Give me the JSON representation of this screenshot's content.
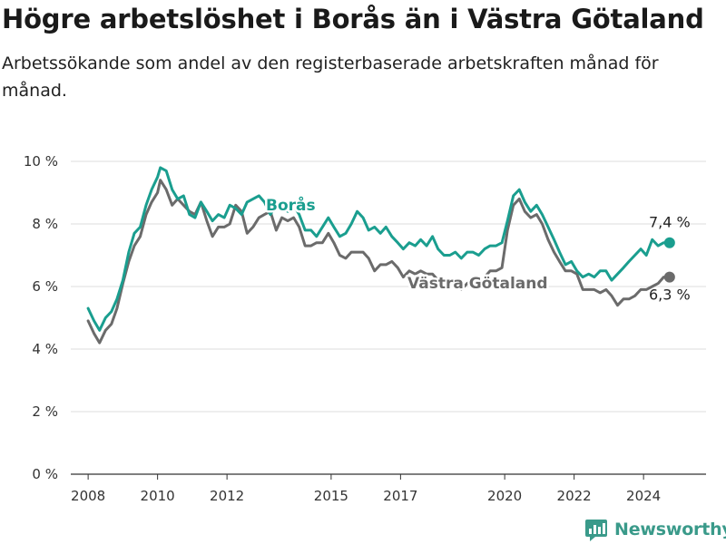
{
  "title": "Högre arbetslöshet i Borås än i Västra Götaland",
  "subtitle": "Arbetssökande som andel av den registerbaserade arbetskraften månad för månad.",
  "brand": {
    "name": "Newsworthy",
    "icon": "newsworthy-logo-icon",
    "color": "#3a9a8a"
  },
  "colors": {
    "boras": "#1a9e8f",
    "vg": "#6b6b6b",
    "grid": "#dcdcdc"
  },
  "chart_data": {
    "type": "line",
    "title": "Högre arbetslöshet i Borås än i Västra Götaland",
    "xlabel": "",
    "ylabel": "",
    "xlim": [
      2007.5,
      2025.8
    ],
    "ylim": [
      0,
      10
    ],
    "grid": true,
    "x_ticks": [
      2008,
      2010,
      2012,
      2015,
      2017,
      2020,
      2022,
      2024
    ],
    "y_ticks": [
      0,
      2,
      4,
      6,
      8,
      10
    ],
    "y_tick_labels": [
      "0 %",
      "2 %",
      "4 %",
      "6 %",
      "8 %",
      "10 %"
    ],
    "series": [
      {
        "name": "Borås",
        "color": "#1a9e8f",
        "end_label": "7,4 %",
        "points": [
          [
            2008.0,
            5.3
          ],
          [
            2008.17,
            4.9
          ],
          [
            2008.33,
            4.6
          ],
          [
            2008.5,
            5.0
          ],
          [
            2008.67,
            5.2
          ],
          [
            2008.83,
            5.6
          ],
          [
            2009.0,
            6.2
          ],
          [
            2009.17,
            7.1
          ],
          [
            2009.33,
            7.7
          ],
          [
            2009.5,
            7.9
          ],
          [
            2009.67,
            8.6
          ],
          [
            2009.83,
            9.1
          ],
          [
            2010.0,
            9.5
          ],
          [
            2010.08,
            9.8
          ],
          [
            2010.25,
            9.7
          ],
          [
            2010.42,
            9.1
          ],
          [
            2010.58,
            8.8
          ],
          [
            2010.75,
            8.9
          ],
          [
            2010.92,
            8.3
          ],
          [
            2011.08,
            8.2
          ],
          [
            2011.25,
            8.7
          ],
          [
            2011.42,
            8.4
          ],
          [
            2011.58,
            8.1
          ],
          [
            2011.75,
            8.3
          ],
          [
            2011.92,
            8.2
          ],
          [
            2012.08,
            8.6
          ],
          [
            2012.25,
            8.5
          ],
          [
            2012.42,
            8.3
          ],
          [
            2012.58,
            8.7
          ],
          [
            2012.75,
            8.8
          ],
          [
            2012.92,
            8.9
          ],
          [
            2013.08,
            8.7
          ],
          [
            2013.25,
            8.3
          ],
          [
            2013.42,
            8.6
          ],
          [
            2013.58,
            8.5
          ],
          [
            2013.75,
            8.4
          ],
          [
            2013.92,
            8.6
          ],
          [
            2014.08,
            8.3
          ],
          [
            2014.25,
            7.8
          ],
          [
            2014.42,
            7.8
          ],
          [
            2014.58,
            7.6
          ],
          [
            2014.75,
            7.9
          ],
          [
            2014.92,
            8.2
          ],
          [
            2015.08,
            7.9
          ],
          [
            2015.25,
            7.6
          ],
          [
            2015.42,
            7.7
          ],
          [
            2015.58,
            8.0
          ],
          [
            2015.75,
            8.4
          ],
          [
            2015.92,
            8.2
          ],
          [
            2016.08,
            7.8
          ],
          [
            2016.25,
            7.9
          ],
          [
            2016.42,
            7.7
          ],
          [
            2016.58,
            7.9
          ],
          [
            2016.75,
            7.6
          ],
          [
            2016.92,
            7.4
          ],
          [
            2017.08,
            7.2
          ],
          [
            2017.25,
            7.4
          ],
          [
            2017.42,
            7.3
          ],
          [
            2017.58,
            7.5
          ],
          [
            2017.75,
            7.3
          ],
          [
            2017.92,
            7.6
          ],
          [
            2018.08,
            7.2
          ],
          [
            2018.25,
            7.0
          ],
          [
            2018.42,
            7.0
          ],
          [
            2018.58,
            7.1
          ],
          [
            2018.75,
            6.9
          ],
          [
            2018.92,
            7.1
          ],
          [
            2019.08,
            7.1
          ],
          [
            2019.25,
            7.0
          ],
          [
            2019.42,
            7.2
          ],
          [
            2019.58,
            7.3
          ],
          [
            2019.75,
            7.3
          ],
          [
            2019.92,
            7.4
          ],
          [
            2020.08,
            8.1
          ],
          [
            2020.25,
            8.9
          ],
          [
            2020.42,
            9.1
          ],
          [
            2020.58,
            8.7
          ],
          [
            2020.75,
            8.4
          ],
          [
            2020.92,
            8.6
          ],
          [
            2021.08,
            8.3
          ],
          [
            2021.25,
            7.9
          ],
          [
            2021.42,
            7.5
          ],
          [
            2021.58,
            7.1
          ],
          [
            2021.75,
            6.7
          ],
          [
            2021.92,
            6.8
          ],
          [
            2022.08,
            6.5
          ],
          [
            2022.25,
            6.3
          ],
          [
            2022.42,
            6.4
          ],
          [
            2022.58,
            6.3
          ],
          [
            2022.75,
            6.5
          ],
          [
            2022.92,
            6.5
          ],
          [
            2023.08,
            6.2
          ],
          [
            2023.25,
            6.4
          ],
          [
            2023.42,
            6.6
          ],
          [
            2023.58,
            6.8
          ],
          [
            2023.75,
            7.0
          ],
          [
            2023.92,
            7.2
          ],
          [
            2024.08,
            7.0
          ],
          [
            2024.25,
            7.5
          ],
          [
            2024.42,
            7.3
          ],
          [
            2024.58,
            7.4
          ],
          [
            2024.75,
            7.4
          ]
        ]
      },
      {
        "name": "Västra Götaland",
        "color": "#6b6b6b",
        "end_label": "6,3 %",
        "points": [
          [
            2008.0,
            4.9
          ],
          [
            2008.17,
            4.5
          ],
          [
            2008.33,
            4.2
          ],
          [
            2008.5,
            4.6
          ],
          [
            2008.67,
            4.8
          ],
          [
            2008.83,
            5.3
          ],
          [
            2009.0,
            6.1
          ],
          [
            2009.17,
            6.8
          ],
          [
            2009.33,
            7.3
          ],
          [
            2009.5,
            7.6
          ],
          [
            2009.67,
            8.3
          ],
          [
            2009.83,
            8.7
          ],
          [
            2010.0,
            9.0
          ],
          [
            2010.08,
            9.4
          ],
          [
            2010.25,
            9.1
          ],
          [
            2010.42,
            8.6
          ],
          [
            2010.58,
            8.8
          ],
          [
            2010.75,
            8.6
          ],
          [
            2010.92,
            8.4
          ],
          [
            2011.08,
            8.3
          ],
          [
            2011.25,
            8.7
          ],
          [
            2011.42,
            8.1
          ],
          [
            2011.58,
            7.6
          ],
          [
            2011.75,
            7.9
          ],
          [
            2011.92,
            7.9
          ],
          [
            2012.08,
            8.0
          ],
          [
            2012.25,
            8.6
          ],
          [
            2012.42,
            8.4
          ],
          [
            2012.58,
            7.7
          ],
          [
            2012.75,
            7.9
          ],
          [
            2012.92,
            8.2
          ],
          [
            2013.08,
            8.3
          ],
          [
            2013.25,
            8.4
          ],
          [
            2013.42,
            7.8
          ],
          [
            2013.58,
            8.2
          ],
          [
            2013.75,
            8.1
          ],
          [
            2013.92,
            8.2
          ],
          [
            2014.08,
            7.9
          ],
          [
            2014.25,
            7.3
          ],
          [
            2014.42,
            7.3
          ],
          [
            2014.58,
            7.4
          ],
          [
            2014.75,
            7.4
          ],
          [
            2014.92,
            7.7
          ],
          [
            2015.08,
            7.4
          ],
          [
            2015.25,
            7.0
          ],
          [
            2015.42,
            6.9
          ],
          [
            2015.58,
            7.1
          ],
          [
            2015.75,
            7.1
          ],
          [
            2015.92,
            7.1
          ],
          [
            2016.08,
            6.9
          ],
          [
            2016.25,
            6.5
          ],
          [
            2016.42,
            6.7
          ],
          [
            2016.58,
            6.7
          ],
          [
            2016.75,
            6.8
          ],
          [
            2016.92,
            6.6
          ],
          [
            2017.08,
            6.3
          ],
          [
            2017.25,
            6.5
          ],
          [
            2017.42,
            6.4
          ],
          [
            2017.58,
            6.5
          ],
          [
            2017.75,
            6.4
          ],
          [
            2017.92,
            6.4
          ],
          [
            2018.08,
            6.2
          ],
          [
            2018.25,
            6.0
          ],
          [
            2018.42,
            6.0
          ],
          [
            2018.58,
            6.1
          ],
          [
            2018.75,
            5.9
          ],
          [
            2018.92,
            6.1
          ],
          [
            2019.08,
            6.2
          ],
          [
            2019.25,
            6.1
          ],
          [
            2019.42,
            6.3
          ],
          [
            2019.58,
            6.5
          ],
          [
            2019.75,
            6.5
          ],
          [
            2019.92,
            6.6
          ],
          [
            2020.08,
            7.8
          ],
          [
            2020.25,
            8.6
          ],
          [
            2020.42,
            8.8
          ],
          [
            2020.58,
            8.4
          ],
          [
            2020.75,
            8.2
          ],
          [
            2020.92,
            8.3
          ],
          [
            2021.08,
            8.0
          ],
          [
            2021.25,
            7.5
          ],
          [
            2021.42,
            7.1
          ],
          [
            2021.58,
            6.8
          ],
          [
            2021.75,
            6.5
          ],
          [
            2021.92,
            6.5
          ],
          [
            2022.08,
            6.4
          ],
          [
            2022.25,
            5.9
          ],
          [
            2022.42,
            5.9
          ],
          [
            2022.58,
            5.9
          ],
          [
            2022.75,
            5.8
          ],
          [
            2022.92,
            5.9
          ],
          [
            2023.08,
            5.7
          ],
          [
            2023.25,
            5.4
          ],
          [
            2023.42,
            5.6
          ],
          [
            2023.58,
            5.6
          ],
          [
            2023.75,
            5.7
          ],
          [
            2023.92,
            5.9
          ],
          [
            2024.08,
            5.9
          ],
          [
            2024.25,
            6.0
          ],
          [
            2024.42,
            6.1
          ],
          [
            2024.58,
            6.3
          ],
          [
            2024.75,
            6.3
          ]
        ]
      }
    ]
  }
}
